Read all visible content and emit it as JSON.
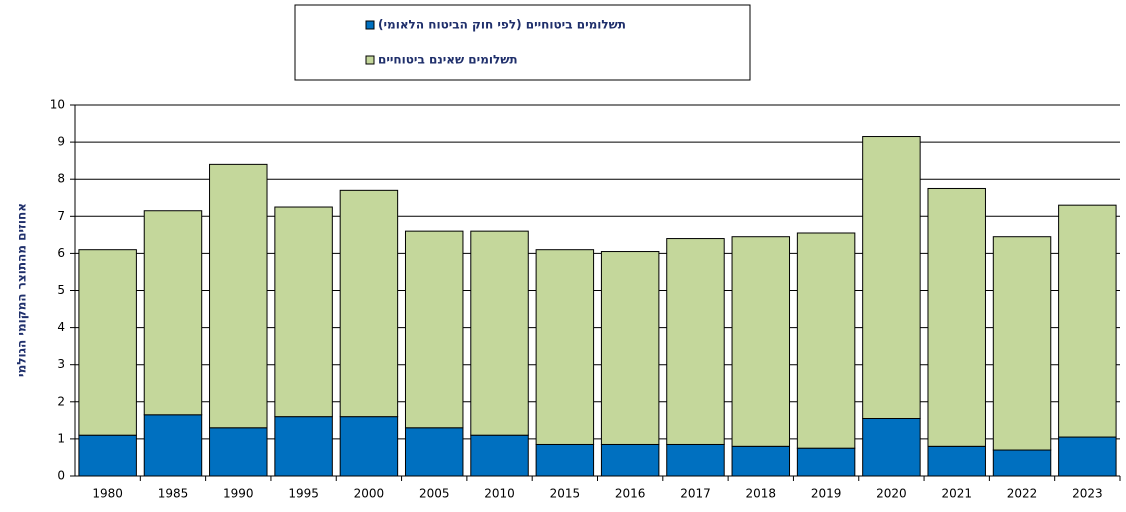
{
  "chart_data": {
    "type": "stacked_bar",
    "y_label": "אחוזים מהתוצר המקומי הגולמי",
    "categories": [
      "1980",
      "1985",
      "1990",
      "1995",
      "2000",
      "2005",
      "2010",
      "2015",
      "2016",
      "2017",
      "2018",
      "2019",
      "2020",
      "2021",
      "2022",
      "2023"
    ],
    "series": [
      {
        "name": "תשלומים ביטוחיים (לפי חוק הביטוח הלאומי)",
        "color": "#0070c0",
        "values": [
          1.1,
          1.65,
          1.3,
          1.6,
          1.6,
          1.3,
          1.1,
          0.85,
          0.85,
          0.85,
          0.8,
          0.75,
          1.55,
          0.8,
          0.7,
          1.05
        ]
      },
      {
        "name": "תשלומים שאינם ביטוחיים",
        "color": "#c4d79b",
        "values": [
          5.0,
          5.5,
          7.1,
          5.65,
          6.1,
          5.3,
          5.5,
          5.25,
          5.2,
          5.55,
          5.65,
          5.8,
          7.6,
          6.95,
          5.75,
          6.25
        ]
      }
    ],
    "ylim": [
      0,
      10
    ],
    "yticks": [
      0,
      1,
      2,
      3,
      4,
      5,
      6,
      7,
      8,
      9,
      10
    ],
    "grid": true
  }
}
